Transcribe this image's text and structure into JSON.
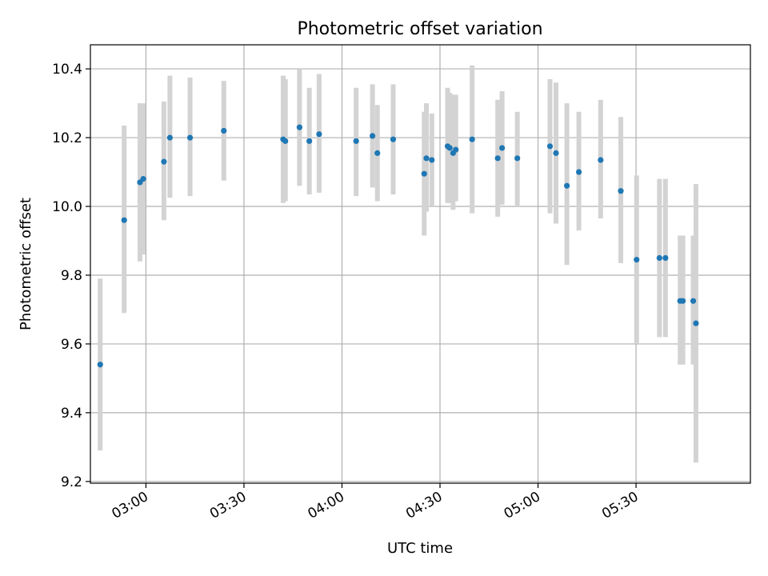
{
  "chart_data": {
    "type": "scatter",
    "title": "Photometric offset variation",
    "xlabel": "UTC time",
    "ylabel": "Photometric offset",
    "xlim": [
      "02:43",
      "06:05"
    ],
    "ylim": [
      9.195,
      10.47
    ],
    "grid": true,
    "x_ticks": [
      "03:00",
      "03:30",
      "04:00",
      "04:30",
      "05:00",
      "05:30"
    ],
    "y_ticks": [
      "9.2",
      "9.4",
      "9.6",
      "9.8",
      "10.0",
      "10.2",
      "10.4"
    ],
    "colors": {
      "point": "#1f77b4",
      "errorbar": "#d3d3d3",
      "grid": "#b0b0b0",
      "axes": "#000000"
    },
    "points": [
      {
        "x": "02:46:00",
        "y": 9.54,
        "err_low": 9.29,
        "err_high": 9.79
      },
      {
        "x": "02:53:20",
        "y": 9.96,
        "err_low": 9.69,
        "err_high": 10.235
      },
      {
        "x": "02:58:10",
        "y": 10.07,
        "err_low": 9.84,
        "err_high": 10.3
      },
      {
        "x": "02:59:10",
        "y": 10.08,
        "err_low": 9.86,
        "err_high": 10.3
      },
      {
        "x": "03:05:30",
        "y": 10.13,
        "err_low": 9.96,
        "err_high": 10.305
      },
      {
        "x": "03:07:20",
        "y": 10.2,
        "err_low": 10.025,
        "err_high": 10.38
      },
      {
        "x": "03:13:30",
        "y": 10.2,
        "err_low": 10.03,
        "err_high": 10.375
      },
      {
        "x": "03:23:50",
        "y": 10.22,
        "err_low": 10.075,
        "err_high": 10.365
      },
      {
        "x": "03:42:00",
        "y": 10.195,
        "err_low": 10.01,
        "err_high": 10.38
      },
      {
        "x": "03:42:40",
        "y": 10.19,
        "err_low": 10.015,
        "err_high": 10.37
      },
      {
        "x": "03:47:00",
        "y": 10.23,
        "err_low": 10.06,
        "err_high": 10.4
      },
      {
        "x": "03:50:00",
        "y": 10.19,
        "err_low": 10.035,
        "err_high": 10.345
      },
      {
        "x": "03:53:00",
        "y": 10.21,
        "err_low": 10.04,
        "err_high": 10.385
      },
      {
        "x": "04:04:20",
        "y": 10.19,
        "err_low": 10.03,
        "err_high": 10.345
      },
      {
        "x": "04:09:20",
        "y": 10.205,
        "err_low": 10.055,
        "err_high": 10.355
      },
      {
        "x": "04:10:50",
        "y": 10.155,
        "err_low": 10.015,
        "err_high": 10.295
      },
      {
        "x": "04:15:40",
        "y": 10.195,
        "err_low": 10.035,
        "err_high": 10.355
      },
      {
        "x": "04:25:10",
        "y": 10.095,
        "err_low": 9.915,
        "err_high": 10.275
      },
      {
        "x": "04:25:50",
        "y": 10.14,
        "err_low": 9.985,
        "err_high": 10.3
      },
      {
        "x": "04:27:30",
        "y": 10.135,
        "err_low": 10.0,
        "err_high": 10.27
      },
      {
        "x": "04:32:20",
        "y": 10.175,
        "err_low": 10.01,
        "err_high": 10.345
      },
      {
        "x": "04:33:00",
        "y": 10.17,
        "err_low": 10.01,
        "err_high": 10.33
      },
      {
        "x": "04:34:00",
        "y": 10.155,
        "err_low": 9.99,
        "err_high": 10.325
      },
      {
        "x": "04:34:50",
        "y": 10.165,
        "err_low": 10.015,
        "err_high": 10.325
      },
      {
        "x": "04:39:50",
        "y": 10.195,
        "err_low": 9.98,
        "err_high": 10.41
      },
      {
        "x": "04:47:40",
        "y": 10.14,
        "err_low": 9.97,
        "err_high": 10.31
      },
      {
        "x": "04:49:00",
        "y": 10.17,
        "err_low": 10.005,
        "err_high": 10.335
      },
      {
        "x": "04:53:40",
        "y": 10.14,
        "err_low": 10.0,
        "err_high": 10.275
      },
      {
        "x": "05:03:40",
        "y": 10.175,
        "err_low": 9.98,
        "err_high": 10.37
      },
      {
        "x": "05:05:30",
        "y": 10.155,
        "err_low": 9.95,
        "err_high": 10.36
      },
      {
        "x": "05:08:50",
        "y": 10.06,
        "err_low": 9.83,
        "err_high": 10.3
      },
      {
        "x": "05:12:30",
        "y": 10.1,
        "err_low": 9.93,
        "err_high": 10.275
      },
      {
        "x": "05:19:10",
        "y": 10.135,
        "err_low": 9.965,
        "err_high": 10.31
      },
      {
        "x": "05:25:20",
        "y": 10.045,
        "err_low": 9.835,
        "err_high": 10.26
      },
      {
        "x": "05:30:10",
        "y": 9.845,
        "err_low": 9.6,
        "err_high": 10.09
      },
      {
        "x": "05:37:10",
        "y": 9.85,
        "err_low": 9.62,
        "err_high": 10.08
      },
      {
        "x": "05:39:00",
        "y": 9.85,
        "err_low": 9.62,
        "err_high": 10.08
      },
      {
        "x": "05:43:30",
        "y": 9.725,
        "err_low": 9.54,
        "err_high": 9.915
      },
      {
        "x": "05:44:20",
        "y": 9.725,
        "err_low": 9.54,
        "err_high": 9.915
      },
      {
        "x": "05:47:30",
        "y": 9.725,
        "err_low": 9.54,
        "err_high": 9.915
      },
      {
        "x": "05:48:20",
        "y": 9.66,
        "err_low": 9.255,
        "err_high": 10.065
      }
    ]
  }
}
